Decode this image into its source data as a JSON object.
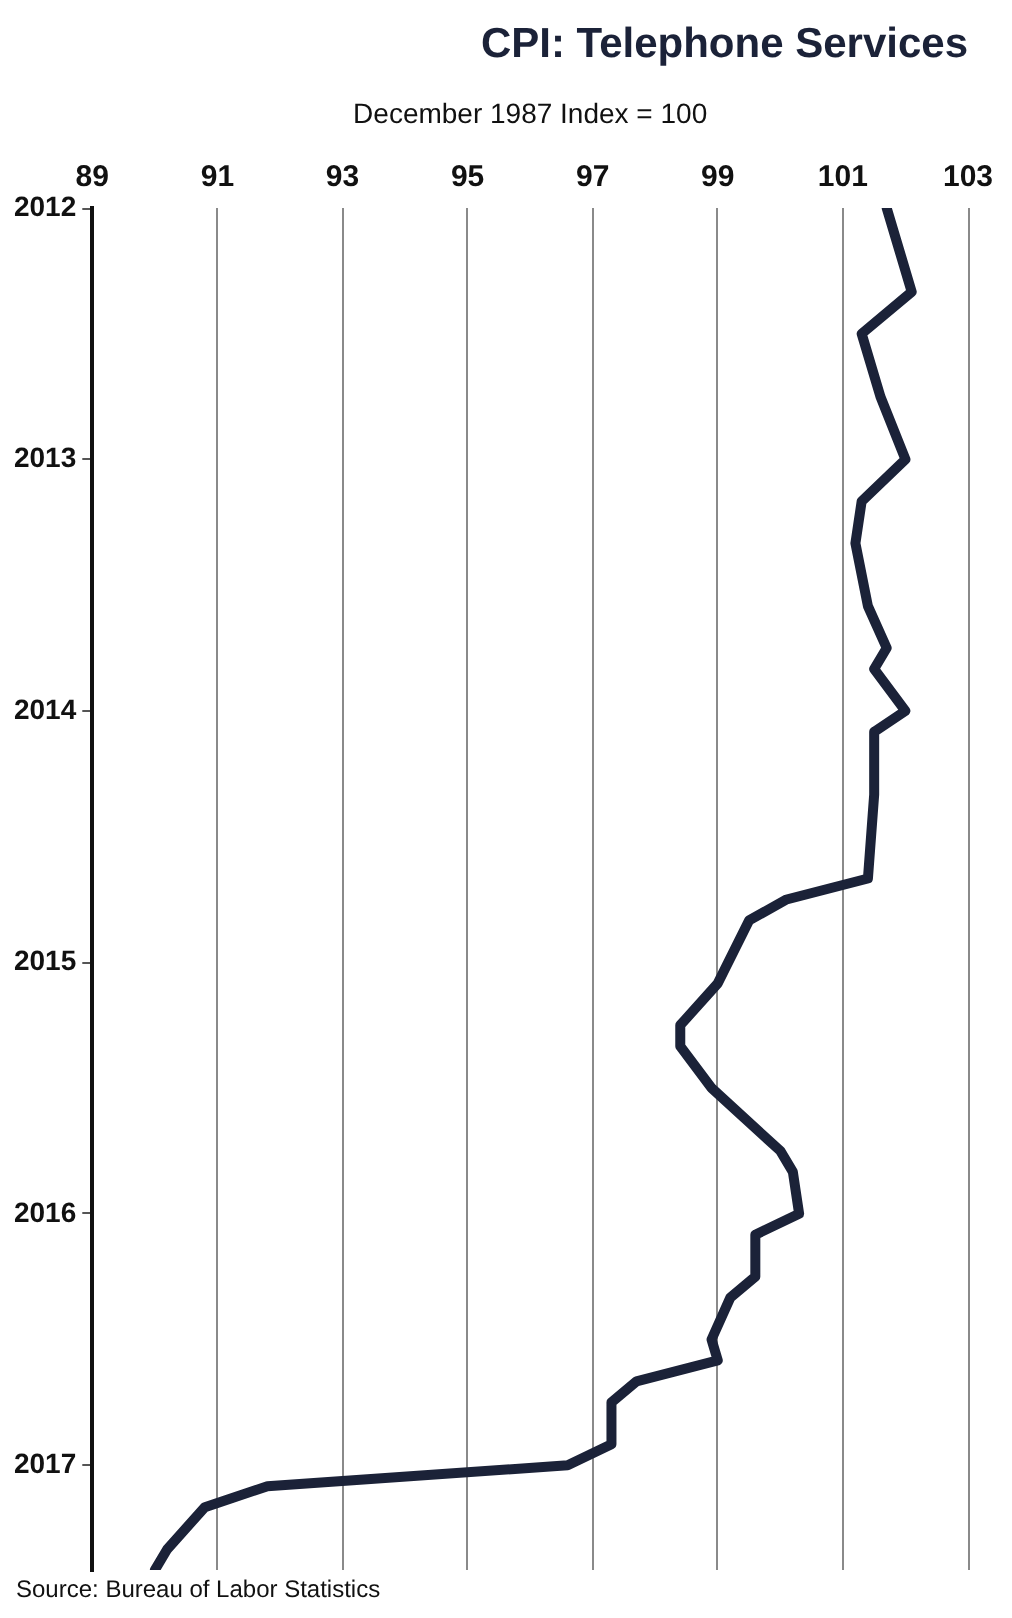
{
  "chart_data": {
    "type": "line",
    "orientation": "horizontal",
    "title": "CPI: Telephone Services",
    "xlabel": "December 1987 Index = 100",
    "annotations": [
      "Source: Bureau of Labor Statistics"
    ],
    "x": [
      "2012-01",
      "2012-05",
      "2012-07",
      "2012-10",
      "2013-01",
      "2013-03",
      "2013-05",
      "2013-08",
      "2013-10",
      "2013-11",
      "2014-01",
      "2014-02",
      "2014-05",
      "2014-09",
      "2014-10",
      "2014-11",
      "2015-02",
      "2015-04",
      "2015-05",
      "2015-07",
      "2015-10",
      "2015-11",
      "2016-01",
      "2016-02",
      "2016-04",
      "2016-05",
      "2016-07",
      "2016-08",
      "2016-09",
      "2016-10",
      "2016-12",
      "2017-01",
      "2017-02",
      "2017-03",
      "2017-05",
      "2017-06"
    ],
    "values": [
      101.7,
      102.1,
      101.3,
      101.6,
      102.0,
      101.3,
      101.2,
      101.4,
      101.7,
      101.5,
      102.0,
      101.5,
      101.5,
      101.4,
      100.1,
      99.5,
      99.0,
      98.4,
      98.4,
      98.9,
      100.0,
      100.2,
      100.3,
      99.6,
      99.6,
      99.2,
      98.9,
      99.0,
      97.7,
      97.3,
      97.3,
      96.6,
      91.8,
      90.8,
      90.2,
      90.0
    ],
    "color": "#1b2238",
    "ylim": [
      "2017-06",
      "2012-01"
    ],
    "yticks": [
      {
        "value": "2012",
        "label": "2012"
      },
      {
        "value": "2013",
        "label": "2013"
      },
      {
        "value": "2014",
        "label": "2014"
      },
      {
        "value": "2015",
        "label": "2015"
      },
      {
        "value": "2016",
        "label": "2016"
      },
      {
        "value": "2017",
        "label": "2017"
      }
    ],
    "xlim": [
      89,
      103
    ],
    "xticks": [
      89,
      91,
      93,
      95,
      97,
      99,
      101,
      103
    ],
    "grid": "x"
  }
}
